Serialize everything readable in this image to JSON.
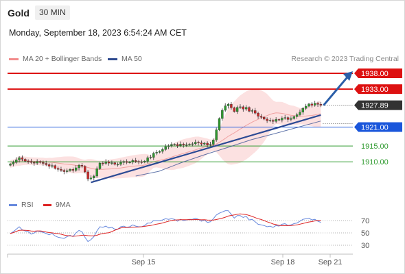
{
  "header": {
    "instrument": "Gold",
    "timeframe": "30 MIN"
  },
  "timestamp": "Monday, September 18, 2023 6:54:24 AM CET",
  "legend": {
    "bb": "MA 20 + Bollinger Bands",
    "ma50": "MA 50",
    "rsi": "RSI",
    "ma9": "9MA"
  },
  "copyright": "Research © 2023 Trading Central",
  "colors": {
    "resistance": "#dd1111",
    "support_strong": "#1a56db",
    "support": "#2e9a2e",
    "candle_up": "#2e9a2e",
    "candle_down": "#c62828",
    "bands": "#f9c9c9",
    "ma50": "#2e4a8f",
    "trendline": "#2c4a94",
    "arrow": "#2a5ea8",
    "rsi": "#6688dd",
    "rsi_ma": "#dd2222"
  },
  "chart_data": [
    {
      "type": "line",
      "title": "",
      "x_ticks": [
        "Sep 15",
        "Sep 18",
        "Sep 21"
      ],
      "y_min": 1903.0,
      "y_max": 1941.0,
      "levels": [
        {
          "label": "1938.00",
          "value": 1938.0,
          "style": "resistance"
        },
        {
          "label": "1933.00",
          "value": 1933.0,
          "style": "resistance"
        },
        {
          "label": "1927.89",
          "value": 1927.89,
          "style": "last"
        },
        {
          "label": "1921.00",
          "value": 1921.0,
          "style": "support_strong"
        },
        {
          "label": "1915.00",
          "value": 1915.0,
          "style": "support"
        },
        {
          "label": "1910.00",
          "value": 1910.0,
          "style": "support"
        }
      ],
      "closes": [
        1909.3,
        1909.8,
        1910.6,
        1911.3,
        1910.8,
        1910.2,
        1910.1,
        1909.8,
        1909.6,
        1910.1,
        1909.8,
        1909.5,
        1909.1,
        1908.6,
        1908.8,
        1907.9,
        1907.6,
        1907.3,
        1906.9,
        1907.2,
        1907.6,
        1907.3,
        1908.1,
        1908.9,
        1908.6,
        1906.8,
        1904.6,
        1904.9,
        1905.5,
        1907.8,
        1909.6,
        1909.5,
        1910.0,
        1909.6,
        1909.7,
        1909.2,
        1909.2,
        1909.8,
        1910.1,
        1909.8,
        1909.9,
        1910.4,
        1910.1,
        1910.0,
        1909.9,
        1910.2,
        1911.3,
        1911.4,
        1912.7,
        1913.0,
        1913.3,
        1913.9,
        1914.8,
        1915.1,
        1915.5,
        1915.5,
        1915.1,
        1915.6,
        1915.3,
        1915.4,
        1915.6,
        1915.7,
        1916.2,
        1916.0,
        1915.6,
        1915.9,
        1915.3,
        1915.5,
        1916.9,
        1920.1,
        1923.7,
        1926.3,
        1927.7,
        1928.2,
        1927.1,
        1925.9,
        1927.2,
        1927.4,
        1926.7,
        1927.2,
        1926.0,
        1926.2,
        1925.4,
        1924.4,
        1924.1,
        1923.5,
        1923.0,
        1923.1,
        1922.8,
        1923.4,
        1923.2,
        1923.8,
        1924.0,
        1923.4,
        1923.7,
        1924.3,
        1924.9,
        1925.7,
        1926.9,
        1927.6,
        1928.3,
        1927.9,
        1928.5,
        1928.2,
        1927.89
      ],
      "ma50": [
        1905.5,
        1907.0,
        1909.8,
        1912.3,
        1914.6,
        1917.0,
        1918.9,
        1920.9,
        1922.9
      ],
      "ma50_from_index": 42,
      "rsi": [
        49,
        52,
        56,
        60,
        55,
        53,
        52,
        48,
        50,
        53,
        52,
        51,
        49,
        47,
        49,
        45,
        43,
        42,
        41,
        44,
        46,
        44,
        50,
        54,
        52,
        43,
        36,
        39,
        44,
        53,
        60,
        59,
        61,
        58,
        59,
        56,
        56,
        60,
        61,
        59,
        60,
        63,
        61,
        60,
        60,
        62,
        66,
        66,
        70,
        70,
        70,
        71,
        73,
        72,
        73,
        72,
        69,
        72,
        70,
        71,
        72,
        72,
        74,
        72,
        69,
        71,
        67,
        68,
        73,
        79,
        82,
        84,
        86,
        86,
        80,
        74,
        78,
        78,
        75,
        77,
        71,
        72,
        68,
        64,
        63,
        62,
        60,
        61,
        59,
        62,
        61,
        64,
        65,
        62,
        63,
        65,
        66,
        69,
        72,
        73,
        74,
        71,
        72,
        69,
        67
      ],
      "rsi_levels": [
        70,
        50,
        30
      ]
    }
  ]
}
